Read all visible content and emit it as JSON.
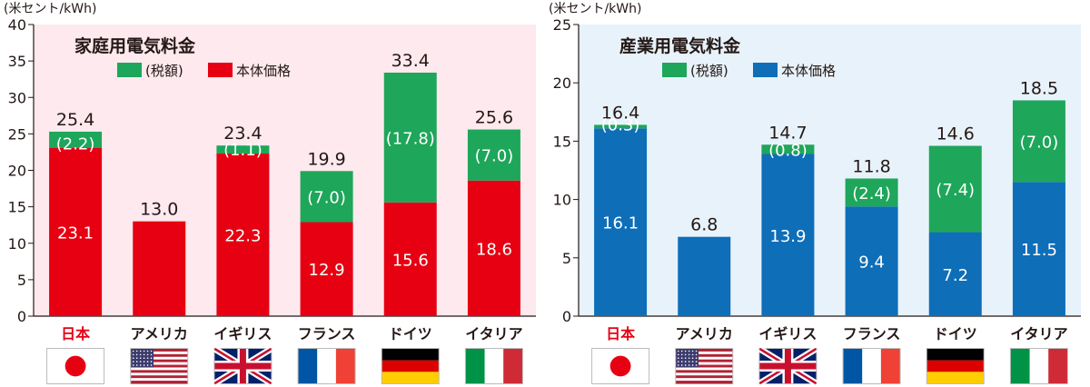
{
  "colors": {
    "tax": "#1ea65a",
    "base_residential": "#e60012",
    "base_industrial": "#0e6eb8",
    "jp_label": "#e60012"
  },
  "flags": [
    "japan-flag",
    "usa-flag",
    "uk-flag",
    "france-flag",
    "germany-flag",
    "italy-flag"
  ],
  "chart_data": [
    {
      "type": "bar",
      "stacked": true,
      "title": "家庭用電気料金",
      "unit_label": "(米セント/kWh)",
      "categories": [
        "日本",
        "アメリカ",
        "イギリス",
        "フランス",
        "ドイツ",
        "イタリア"
      ],
      "ylim": [
        0,
        40
      ],
      "yticks": [
        "0",
        "5",
        "10",
        "15",
        "20",
        "25",
        "30",
        "35",
        "40"
      ],
      "legend": [
        "(税額)",
        "本体価格"
      ],
      "series": [
        {
          "name": "本体価格",
          "values": [
            23.1,
            13.0,
            22.3,
            12.9,
            15.6,
            18.6
          ]
        },
        {
          "name": "(税額)",
          "values": [
            2.2,
            0,
            1.1,
            7.0,
            17.8,
            7.0
          ]
        }
      ],
      "totals": [
        "25.4",
        "13.0",
        "23.4",
        "19.9",
        "33.4",
        "25.6"
      ],
      "base_labels": [
        "23.1",
        "",
        "22.3",
        "12.9",
        "15.6",
        "18.6"
      ],
      "tax_labels": [
        "(2.2)",
        "",
        "(1.1)",
        "(7.0)",
        "(17.8)",
        "(7.0)"
      ],
      "background": "#fde9ee"
    },
    {
      "type": "bar",
      "stacked": true,
      "title": "産業用電気料金",
      "unit_label": "(米セント/kWh)",
      "categories": [
        "日本",
        "アメリカ",
        "イギリス",
        "フランス",
        "ドイツ",
        "イタリア"
      ],
      "ylim": [
        0,
        25
      ],
      "yticks": [
        "0",
        "5",
        "10",
        "15",
        "20",
        "25"
      ],
      "legend": [
        "(税額)",
        "本体価格"
      ],
      "series": [
        {
          "name": "本体価格",
          "values": [
            16.1,
            6.8,
            13.9,
            9.4,
            7.2,
            11.5
          ]
        },
        {
          "name": "(税額)",
          "values": [
            0.3,
            0,
            0.8,
            2.4,
            7.4,
            7.0
          ]
        }
      ],
      "totals": [
        "16.4",
        "6.8",
        "14.7",
        "11.8",
        "14.6",
        "18.5"
      ],
      "base_labels": [
        "16.1",
        "",
        "13.9",
        "9.4",
        "7.2",
        "11.5"
      ],
      "tax_labels": [
        "(0.3)",
        "",
        "(0.8)",
        "(2.4)",
        "(7.4)",
        "(7.0)"
      ],
      "background": "#e8f2fb"
    }
  ]
}
